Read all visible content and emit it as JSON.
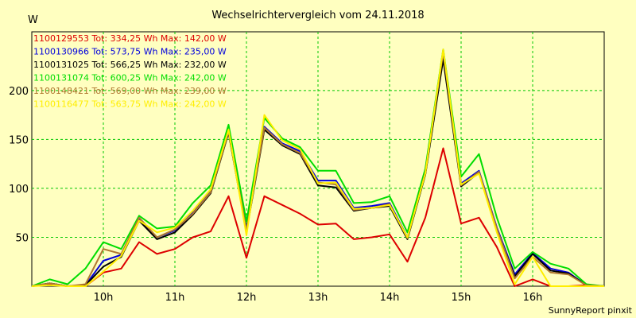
{
  "chart_data": {
    "type": "line",
    "title": "Wechselrichtervergleich vom 24.11.2018",
    "ylabel": "W",
    "ylim": [
      0,
      260
    ],
    "y_ticks": [
      50,
      100,
      150,
      200
    ],
    "x_ticks": [
      "10h",
      "11h",
      "12h",
      "13h",
      "14h",
      "15h",
      "16h"
    ],
    "x_tick_hours": [
      10,
      11,
      12,
      13,
      14,
      15,
      16
    ],
    "xlim": [
      9.0,
      17.0
    ],
    "grid": true,
    "legend_position": "top-left",
    "credit": "SunnyReport pinxit",
    "x": [
      9.0,
      9.25,
      9.5,
      9.75,
      10.0,
      10.25,
      10.5,
      10.75,
      11.0,
      11.25,
      11.5,
      11.75,
      12.0,
      12.25,
      12.5,
      12.75,
      13.0,
      13.25,
      13.5,
      13.75,
      14.0,
      14.25,
      14.5,
      14.75,
      15.0,
      15.25,
      15.5,
      15.75,
      16.0,
      16.25,
      16.5,
      16.75,
      17.0
    ],
    "series": [
      {
        "name": "1100129553",
        "label": "1100129553 Tot: 334,25 Wh Max: 142,00 W",
        "color": "#dd0000",
        "values": [
          0,
          2,
          0,
          0,
          14,
          18,
          45,
          33,
          38,
          50,
          56,
          92,
          29,
          92,
          83,
          74,
          63,
          64,
          48,
          50,
          53,
          25,
          70,
          141,
          64,
          70,
          40,
          0,
          7,
          0,
          0,
          1,
          0
        ]
      },
      {
        "name": "1100130966",
        "label": "1100130966 Tot: 573,75 Wh Max: 235,00 W",
        "color": "#0000dd",
        "values": [
          0,
          3,
          0,
          1,
          26,
          32,
          68,
          50,
          57,
          75,
          97,
          158,
          58,
          163,
          146,
          138,
          108,
          108,
          80,
          82,
          85,
          50,
          115,
          235,
          105,
          118,
          60,
          12,
          34,
          18,
          14,
          1,
          0
        ]
      },
      {
        "name": "1100131025",
        "label": "1100131025 Tot: 566,25 Wh Max: 232,00 W",
        "color": "#000000",
        "values": [
          0,
          3,
          0,
          1,
          20,
          30,
          67,
          48,
          55,
          73,
          95,
          157,
          56,
          160,
          144,
          135,
          103,
          101,
          77,
          80,
          82,
          48,
          114,
          232,
          102,
          116,
          58,
          10,
          33,
          16,
          13,
          1,
          0
        ]
      },
      {
        "name": "1100131074",
        "label": "1100131074 Tot: 600,25 Wh Max: 242,00 W",
        "color": "#00dd00",
        "values": [
          0,
          7,
          2,
          18,
          45,
          38,
          72,
          59,
          61,
          85,
          103,
          165,
          66,
          172,
          151,
          142,
          118,
          118,
          85,
          86,
          92,
          55,
          120,
          242,
          112,
          135,
          70,
          18,
          35,
          23,
          18,
          2,
          0
        ]
      },
      {
        "name": "1100148421",
        "label": "1100148421 Tot: 569,00 Wh Max: 239,00 W",
        "color": "#b07830",
        "values": [
          0,
          3,
          0,
          2,
          38,
          33,
          70,
          50,
          58,
          74,
          96,
          158,
          57,
          162,
          145,
          136,
          106,
          104,
          78,
          80,
          84,
          49,
          116,
          239,
          103,
          117,
          59,
          8,
          30,
          14,
          12,
          1,
          0
        ]
      },
      {
        "name": "1100116477",
        "label": "1100116477 Tot: 563,75 Wh Max: 242,00 W",
        "color": "#ffee00",
        "values": [
          0,
          1,
          0,
          0,
          15,
          31,
          67,
          55,
          60,
          77,
          99,
          160,
          52,
          175,
          149,
          140,
          105,
          106,
          79,
          80,
          83,
          50,
          115,
          242,
          104,
          115,
          55,
          2,
          30,
          0,
          0,
          0,
          0
        ]
      }
    ]
  }
}
